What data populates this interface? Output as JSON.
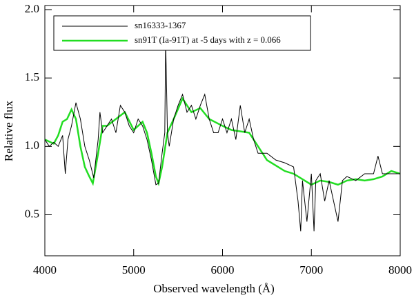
{
  "chart_data": {
    "type": "line",
    "xlabel": "Observed wavelength (Å)",
    "ylabel": "Relative flux",
    "xlim": [
      4000,
      8000
    ],
    "ylim": [
      0.2,
      2.03
    ],
    "xticks": [
      4000,
      5000,
      6000,
      7000,
      8000
    ],
    "yticks": [
      0.5,
      {
        "value": 1,
        "label": "1.0"
      },
      1.5,
      {
        "value": 2,
        "label": "2.0"
      }
    ],
    "legend": "upper left",
    "series": [
      {
        "name": "sn16333-1367",
        "color": "#000000",
        "x": [
          4000,
          4050,
          4100,
          4150,
          4200,
          4230,
          4260,
          4300,
          4350,
          4400,
          4450,
          4500,
          4550,
          4600,
          4620,
          4650,
          4700,
          4750,
          4800,
          4850,
          4900,
          4950,
          5000,
          5050,
          5100,
          5150,
          5200,
          5250,
          5280,
          5320,
          5350,
          5360,
          5380,
          5400,
          5450,
          5500,
          5550,
          5600,
          5650,
          5700,
          5750,
          5800,
          5850,
          5900,
          5950,
          6000,
          6050,
          6100,
          6150,
          6200,
          6250,
          6300,
          6350,
          6400,
          6500,
          6600,
          6700,
          6800,
          6850,
          6880,
          6900,
          6950,
          7000,
          7030,
          7050,
          7100,
          7150,
          7200,
          7250,
          7300,
          7350,
          7400,
          7500,
          7600,
          7700,
          7750,
          7800,
          7900,
          8000
        ],
        "values": [
          1.05,
          1.0,
          1.03,
          1.0,
          1.08,
          0.8,
          1.05,
          1.15,
          1.32,
          1.2,
          1.0,
          0.9,
          0.77,
          1.05,
          1.25,
          1.1,
          1.15,
          1.2,
          1.1,
          1.3,
          1.25,
          1.15,
          1.1,
          1.2,
          1.15,
          1.05,
          0.9,
          0.72,
          0.73,
          0.95,
          1.1,
          1.77,
          1.1,
          1.0,
          1.2,
          1.3,
          1.38,
          1.25,
          1.3,
          1.2,
          1.3,
          1.38,
          1.2,
          1.1,
          1.1,
          1.2,
          1.1,
          1.2,
          1.05,
          1.3,
          1.1,
          1.2,
          1.05,
          0.95,
          0.95,
          0.9,
          0.88,
          0.85,
          0.6,
          0.38,
          0.75,
          0.45,
          0.8,
          0.38,
          0.75,
          0.8,
          0.6,
          0.75,
          0.6,
          0.45,
          0.75,
          0.78,
          0.75,
          0.8,
          0.8,
          0.93,
          0.8,
          0.8,
          0.8
        ]
      },
      {
        "name": "sn91T (Ia-91T) at -5 days with z = 0.066",
        "color": "#22dd22",
        "x": [
          4000,
          4100,
          4150,
          4200,
          4250,
          4300,
          4350,
          4400,
          4450,
          4500,
          4540,
          4600,
          4650,
          4700,
          4800,
          4900,
          5000,
          5100,
          5150,
          5200,
          5250,
          5280,
          5320,
          5380,
          5450,
          5550,
          5650,
          5750,
          5850,
          6000,
          6100,
          6300,
          6400,
          6500,
          6600,
          6700,
          6800,
          6900,
          7000,
          7100,
          7200,
          7300,
          7400,
          7500,
          7600,
          7700,
          7800,
          7900,
          8000
        ],
        "values": [
          1.05,
          1.02,
          1.08,
          1.18,
          1.2,
          1.27,
          1.2,
          1.0,
          0.85,
          0.78,
          0.73,
          0.95,
          1.15,
          1.15,
          1.2,
          1.25,
          1.12,
          1.18,
          1.1,
          0.95,
          0.78,
          0.73,
          0.85,
          1.1,
          1.2,
          1.35,
          1.25,
          1.28,
          1.2,
          1.15,
          1.12,
          1.1,
          1.0,
          0.9,
          0.86,
          0.82,
          0.8,
          0.76,
          0.72,
          0.75,
          0.74,
          0.72,
          0.75,
          0.76,
          0.75,
          0.76,
          0.78,
          0.82,
          0.8
        ]
      }
    ]
  }
}
